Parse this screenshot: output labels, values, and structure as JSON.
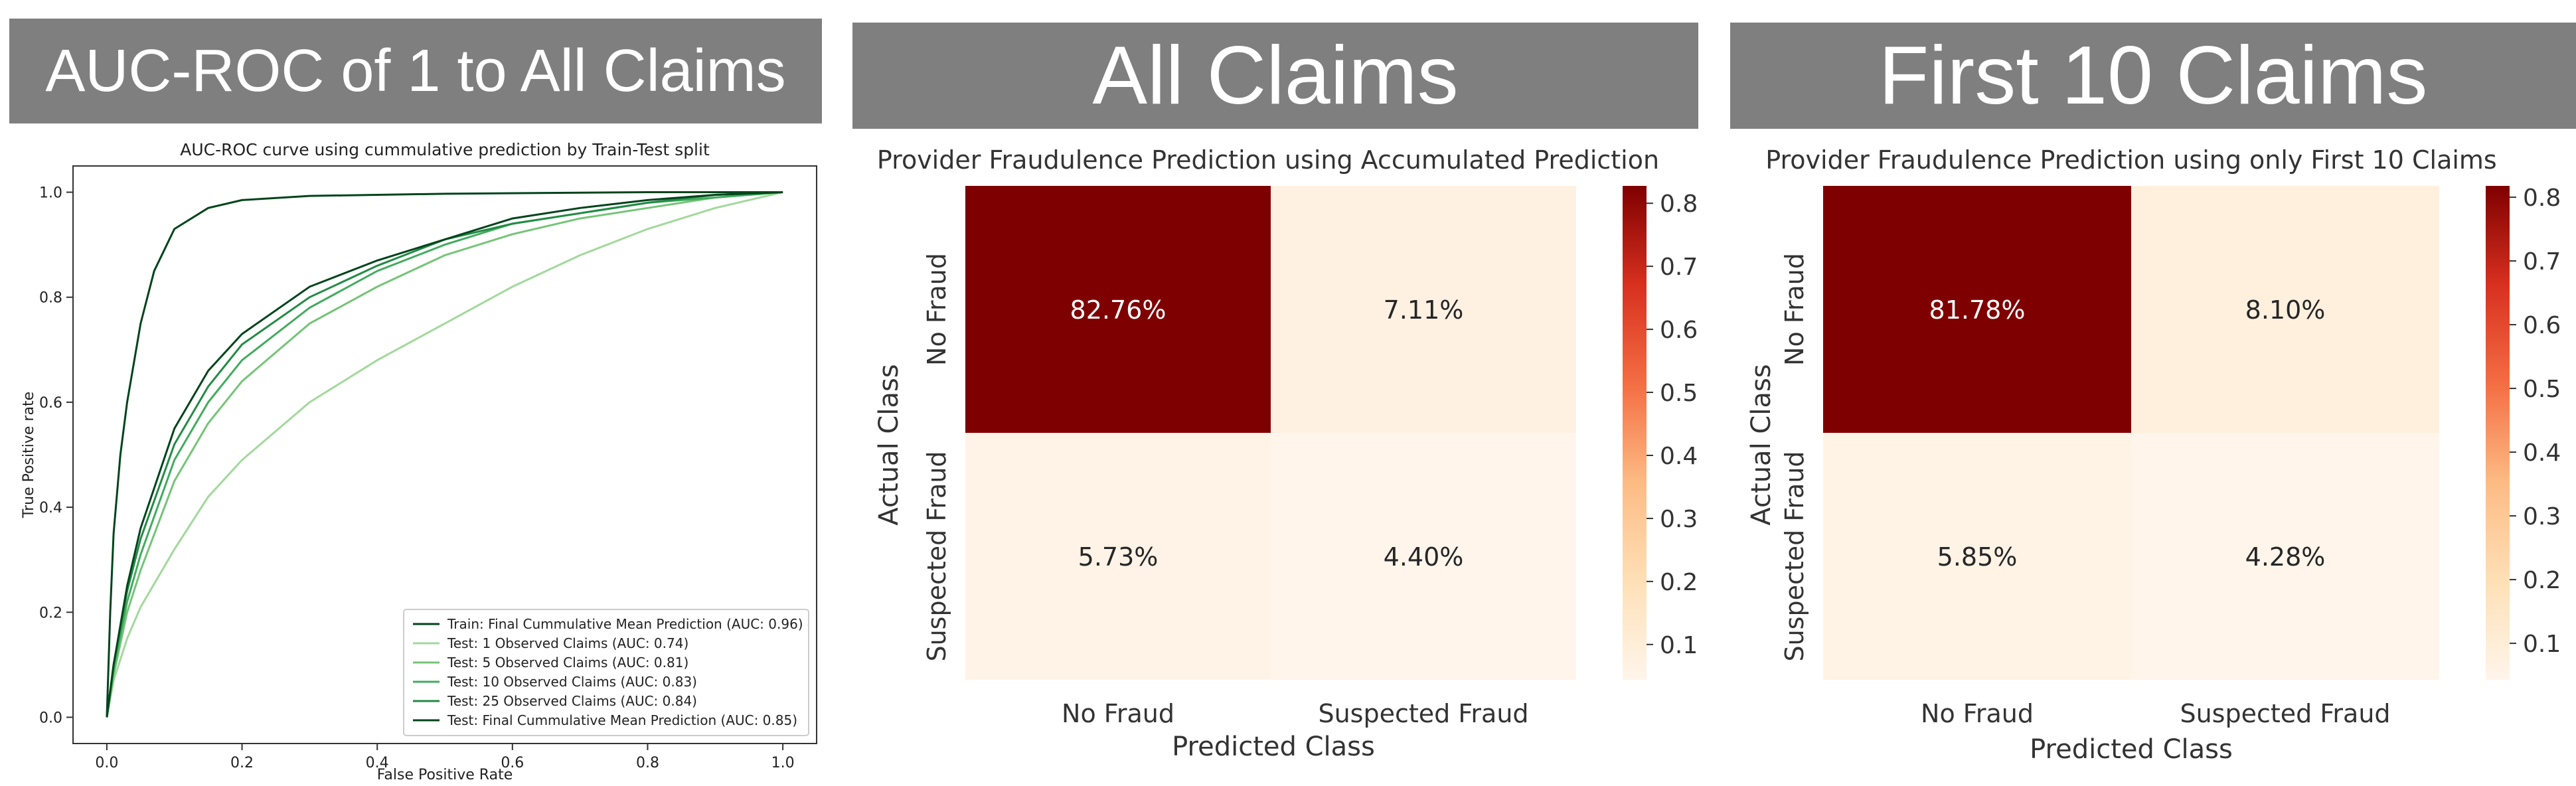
{
  "banners": {
    "roc": "AUC-ROC of 1 to All Claims",
    "all": "All Claims",
    "first10": "First 10 Claims"
  },
  "colors": {
    "banner_bg": "#7f7f7f",
    "cm_dark": "#800000",
    "cm_light": "#fff3e1"
  },
  "chart_data": [
    {
      "type": "line",
      "title": "AUC-ROC curve using cummulative prediction by Train-Test split",
      "xlabel": "False Positive Rate",
      "ylabel": "True Positive rate",
      "xlim": [
        -0.05,
        1.05
      ],
      "ylim": [
        -0.05,
        1.05
      ],
      "xticks": [
        "0.0",
        "0.2",
        "0.4",
        "0.6",
        "0.8",
        "1.0"
      ],
      "yticks": [
        "0.0",
        "0.2",
        "0.4",
        "0.6",
        "0.8",
        "1.0"
      ],
      "grid": false,
      "legend_position": "lower-right",
      "series": [
        {
          "name": "Train: Final Cummulative Mean Prediction (AUC: 0.96)",
          "color": "#00441b",
          "points": [
            [
              0,
              0
            ],
            [
              0.005,
              0.2
            ],
            [
              0.01,
              0.35
            ],
            [
              0.02,
              0.5
            ],
            [
              0.03,
              0.6
            ],
            [
              0.05,
              0.75
            ],
            [
              0.07,
              0.85
            ],
            [
              0.1,
              0.93
            ],
            [
              0.15,
              0.97
            ],
            [
              0.2,
              0.985
            ],
            [
              0.3,
              0.993
            ],
            [
              0.5,
              0.997
            ],
            [
              0.8,
              1
            ],
            [
              1,
              1
            ]
          ]
        },
        {
          "name": "Test: 1 Observed Claims (AUC: 0.74)",
          "color": "#a1d99b",
          "points": [
            [
              0,
              0
            ],
            [
              0.01,
              0.07
            ],
            [
              0.03,
              0.15
            ],
            [
              0.05,
              0.21
            ],
            [
              0.1,
              0.32
            ],
            [
              0.15,
              0.42
            ],
            [
              0.2,
              0.49
            ],
            [
              0.3,
              0.6
            ],
            [
              0.4,
              0.68
            ],
            [
              0.5,
              0.75
            ],
            [
              0.6,
              0.82
            ],
            [
              0.7,
              0.88
            ],
            [
              0.8,
              0.93
            ],
            [
              0.9,
              0.97
            ],
            [
              1,
              1
            ]
          ]
        },
        {
          "name": "Test: 5 Observed Claims (AUC: 0.81)",
          "color": "#74c476",
          "points": [
            [
              0,
              0
            ],
            [
              0.01,
              0.08
            ],
            [
              0.03,
              0.2
            ],
            [
              0.05,
              0.28
            ],
            [
              0.1,
              0.45
            ],
            [
              0.15,
              0.56
            ],
            [
              0.2,
              0.64
            ],
            [
              0.3,
              0.75
            ],
            [
              0.4,
              0.82
            ],
            [
              0.5,
              0.88
            ],
            [
              0.6,
              0.92
            ],
            [
              0.7,
              0.95
            ],
            [
              0.8,
              0.97
            ],
            [
              0.9,
              0.99
            ],
            [
              1,
              1
            ]
          ]
        },
        {
          "name": "Test: 10 Observed Claims (AUC: 0.83)",
          "color": "#41ab5d",
          "points": [
            [
              0,
              0
            ],
            [
              0.01,
              0.09
            ],
            [
              0.03,
              0.22
            ],
            [
              0.05,
              0.31
            ],
            [
              0.1,
              0.49
            ],
            [
              0.15,
              0.6
            ],
            [
              0.2,
              0.68
            ],
            [
              0.3,
              0.78
            ],
            [
              0.4,
              0.85
            ],
            [
              0.5,
              0.9
            ],
            [
              0.6,
              0.94
            ],
            [
              0.7,
              0.96
            ],
            [
              0.8,
              0.98
            ],
            [
              0.9,
              0.99
            ],
            [
              1,
              1
            ]
          ]
        },
        {
          "name": "Test: 25 Observed Claims (AUC: 0.84)",
          "color": "#238b45",
          "points": [
            [
              0,
              0
            ],
            [
              0.01,
              0.1
            ],
            [
              0.03,
              0.24
            ],
            [
              0.05,
              0.34
            ],
            [
              0.1,
              0.52
            ],
            [
              0.15,
              0.63
            ],
            [
              0.2,
              0.71
            ],
            [
              0.3,
              0.8
            ],
            [
              0.4,
              0.86
            ],
            [
              0.5,
              0.91
            ],
            [
              0.6,
              0.94
            ],
            [
              0.7,
              0.96
            ],
            [
              0.8,
              0.98
            ],
            [
              0.9,
              0.995
            ],
            [
              1,
              1
            ]
          ]
        },
        {
          "name": "Test: Final Cummulative Mean Prediction (AUC: 0.85)",
          "color": "#00441b",
          "points": [
            [
              0,
              0
            ],
            [
              0.01,
              0.1
            ],
            [
              0.03,
              0.25
            ],
            [
              0.05,
              0.36
            ],
            [
              0.1,
              0.55
            ],
            [
              0.15,
              0.66
            ],
            [
              0.2,
              0.73
            ],
            [
              0.3,
              0.82
            ],
            [
              0.4,
              0.87
            ],
            [
              0.5,
              0.91
            ],
            [
              0.6,
              0.95
            ],
            [
              0.7,
              0.97
            ],
            [
              0.8,
              0.985
            ],
            [
              0.9,
              0.995
            ],
            [
              1,
              1
            ]
          ]
        }
      ]
    },
    {
      "type": "heatmap",
      "title": "Provider Fraudulence Prediction using Accumulated Prediction",
      "xlabel": "Predicted Class",
      "ylabel": "Actual Class",
      "x_categories": [
        "No Fraud",
        "Suspected Fraud"
      ],
      "y_categories": [
        "No Fraud",
        "Suspected Fraud"
      ],
      "values": [
        [
          0.8276,
          0.0711
        ],
        [
          0.0573,
          0.044
        ]
      ],
      "labels": [
        [
          "82.76%",
          "7.11%"
        ],
        [
          "5.73%",
          "4.40%"
        ]
      ],
      "colorbar": {
        "min": 0.044,
        "max": 0.8276,
        "ticks": [
          "0.1",
          "0.2",
          "0.3",
          "0.4",
          "0.5",
          "0.6",
          "0.7",
          "0.8"
        ]
      }
    },
    {
      "type": "heatmap",
      "title": "Provider Fraudulence Prediction using only First 10 Claims",
      "xlabel": "Predicted Class",
      "ylabel": "Actual Class",
      "x_categories": [
        "No Fraud",
        "Suspected Fraud"
      ],
      "y_categories": [
        "No Fraud",
        "Suspected Fraud"
      ],
      "values": [
        [
          0.8178,
          0.081
        ],
        [
          0.0585,
          0.0428
        ]
      ],
      "labels": [
        [
          "81.78%",
          "8.10%"
        ],
        [
          "5.85%",
          "4.28%"
        ]
      ],
      "colorbar": {
        "min": 0.0428,
        "max": 0.8178,
        "ticks": [
          "0.1",
          "0.2",
          "0.3",
          "0.4",
          "0.5",
          "0.6",
          "0.7",
          "0.8"
        ]
      }
    }
  ]
}
